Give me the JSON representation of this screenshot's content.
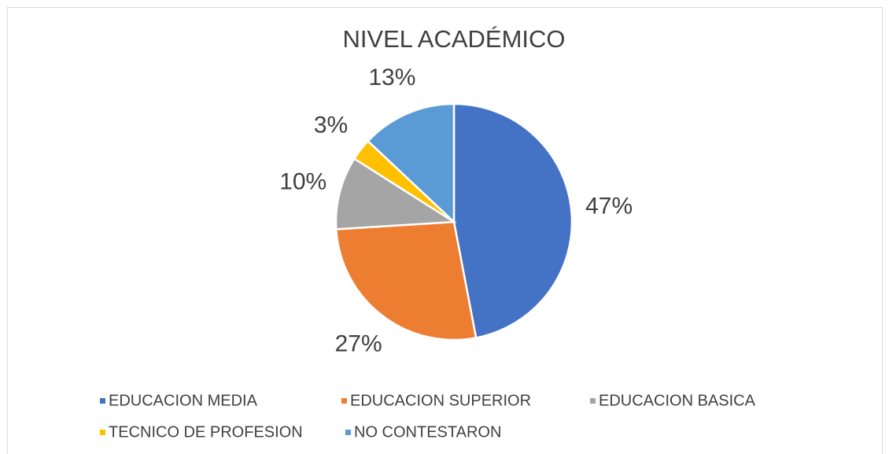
{
  "chart_data": {
    "type": "pie",
    "title": "NIVEL ACADÉMICO",
    "categories": [
      "EDUCACION MEDIA",
      "EDUCACION SUPERIOR",
      "EDUCACION BASICA",
      "TECNICO DE PROFESION",
      "NO CONTESTARON"
    ],
    "values": [
      47,
      27,
      10,
      3,
      13
    ],
    "value_labels": [
      "47%",
      "27%",
      "10%",
      "3%",
      "13%"
    ],
    "colors": [
      "#4472c4",
      "#ed7d31",
      "#a5a5a5",
      "#ffc000",
      "#5b9bd5"
    ],
    "legend": "bottom"
  }
}
